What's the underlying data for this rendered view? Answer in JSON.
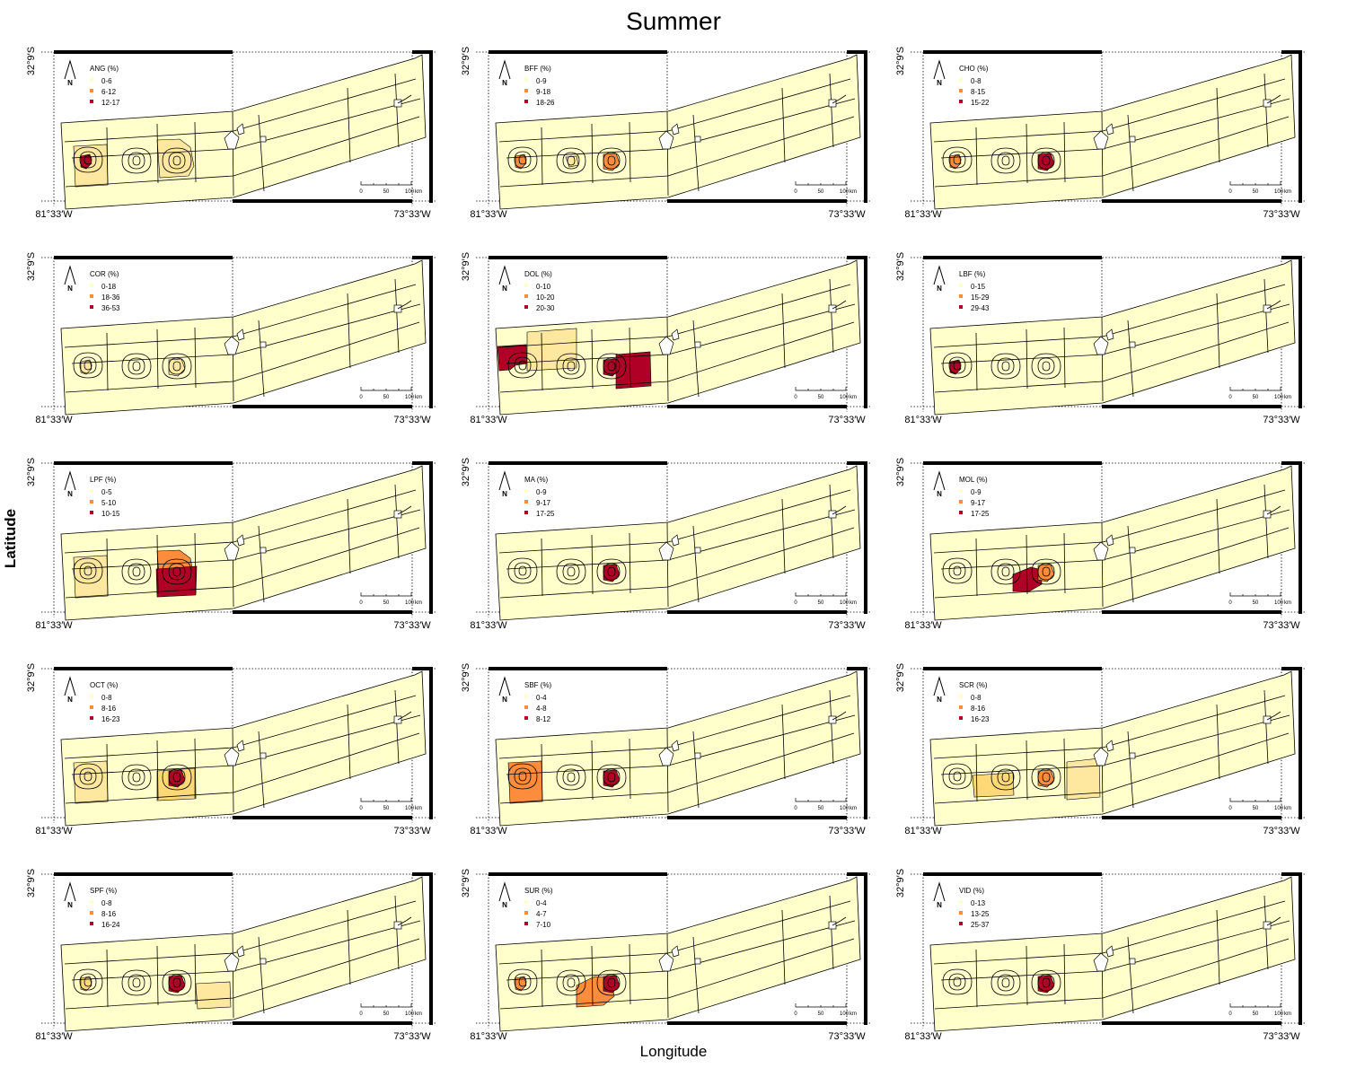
{
  "title": "Summer",
  "axes": {
    "x_title": "Longitude",
    "y_title": "Latitude"
  },
  "coords": {
    "lon_left": "81°33′W",
    "lon_right": "73°33′W",
    "lat_top": "32°9′S"
  },
  "scale_bar": {
    "ticks": [
      "0",
      "50",
      "100"
    ],
    "unit": "km"
  },
  "north_label": "N",
  "colors": {
    "base": "#ffffcc",
    "light": "#fee8a0",
    "low": "#fed976",
    "mid": "#fd8d3c",
    "high": "#b10026"
  },
  "maps": [
    {
      "species": "ANG (%)",
      "legend": [
        "0-6",
        "6-12",
        "12-17"
      ],
      "hot": [
        {
          "zone": "bigA",
          "level": "light"
        },
        {
          "zone": "bigC",
          "level": "light"
        },
        {
          "zone": "ptA",
          "level": "high"
        }
      ]
    },
    {
      "species": "BFF (%)",
      "legend": [
        "0-9",
        "9-18",
        "18-26"
      ],
      "hot": [
        {
          "zone": "ptA",
          "level": "mid"
        },
        {
          "zone": "ptC",
          "level": "mid"
        },
        {
          "zone": "ptB",
          "level": "light"
        }
      ]
    },
    {
      "species": "CHO (%)",
      "legend": [
        "0-8",
        "8-15",
        "15-22"
      ],
      "hot": [
        {
          "zone": "ptA",
          "level": "mid"
        },
        {
          "zone": "ptC",
          "level": "high"
        }
      ]
    },
    {
      "species": "COR (%)",
      "legend": [
        "0-18",
        "18-36",
        "36-53"
      ],
      "hot": [
        {
          "zone": "ptA",
          "level": "light"
        },
        {
          "zone": "ptC",
          "level": "light"
        }
      ]
    },
    {
      "species": "DOL (%)",
      "legend": [
        "0-10",
        "10-20",
        "20-30"
      ],
      "hot": [
        {
          "zone": "blockA",
          "level": "high"
        },
        {
          "zone": "blockB",
          "level": "light"
        },
        {
          "zone": "ptC",
          "level": "high"
        },
        {
          "zone": "blockD",
          "level": "high"
        }
      ]
    },
    {
      "species": "LBF (%)",
      "legend": [
        "0-15",
        "15-29",
        "29-43"
      ],
      "hot": [
        {
          "zone": "ptA",
          "level": "high"
        }
      ]
    },
    {
      "species": "LPF (%)",
      "legend": [
        "0-5",
        "5-10",
        "10-15"
      ],
      "hot": [
        {
          "zone": "bigA",
          "level": "light"
        },
        {
          "zone": "bigC",
          "level": "mid"
        },
        {
          "zone": "blockC",
          "level": "high"
        }
      ]
    },
    {
      "species": "MA (%)",
      "legend": [
        "0-9",
        "9-17",
        "17-25"
      ],
      "hot": [
        {
          "zone": "ptC",
          "level": "high"
        }
      ]
    },
    {
      "species": "MOL (%)",
      "legend": [
        "0-9",
        "9-17",
        "17-25"
      ],
      "hot": [
        {
          "zone": "lobeC",
          "level": "high"
        },
        {
          "zone": "ptC",
          "level": "mid"
        }
      ]
    },
    {
      "species": "OCT (%)",
      "legend": [
        "0-8",
        "8-16",
        "16-23"
      ],
      "hot": [
        {
          "zone": "bigA",
          "level": "light"
        },
        {
          "zone": "blockCfull",
          "level": "low"
        },
        {
          "zone": "ptC",
          "level": "high"
        }
      ]
    },
    {
      "species": "SBF (%)",
      "legend": [
        "0-4",
        "4-8",
        "8-12"
      ],
      "hot": [
        {
          "zone": "bigA",
          "level": "mid"
        },
        {
          "zone": "ptC",
          "level": "high"
        }
      ]
    },
    {
      "species": "SCR (%)",
      "legend": [
        "0-8",
        "8-16",
        "16-23"
      ],
      "hot": [
        {
          "zone": "blockB2",
          "level": "low"
        },
        {
          "zone": "blockD2",
          "level": "light"
        },
        {
          "zone": "ptC",
          "level": "mid"
        }
      ]
    },
    {
      "species": "SPF (%)",
      "legend": [
        "0-8",
        "8-16",
        "16-24"
      ],
      "hot": [
        {
          "zone": "ptA",
          "level": "low"
        },
        {
          "zone": "ptC",
          "level": "high"
        },
        {
          "zone": "blockD3",
          "level": "light"
        }
      ]
    },
    {
      "species": "SUR (%)",
      "legend": [
        "0-4",
        "4-7",
        "7-10"
      ],
      "hot": [
        {
          "zone": "ptA",
          "level": "mid"
        },
        {
          "zone": "bigCmid",
          "level": "mid"
        },
        {
          "zone": "ptC",
          "level": "high"
        }
      ]
    },
    {
      "species": "VID (%)",
      "legend": [
        "0-13",
        "13-25",
        "25-37"
      ],
      "hot": [
        {
          "zone": "ptC",
          "level": "high"
        }
      ]
    }
  ]
}
